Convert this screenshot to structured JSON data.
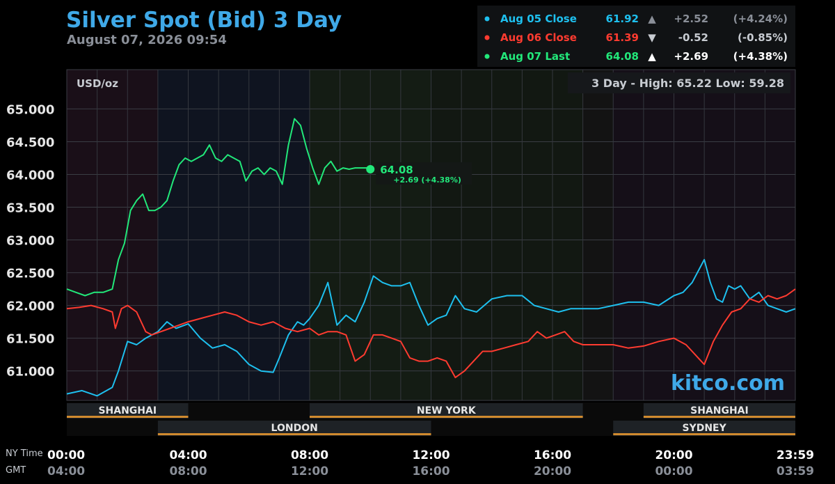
{
  "header": {
    "title": "Silver Spot (Bid) 3 Day",
    "subtitle": "August 07, 2026 09:54"
  },
  "legend": [
    {
      "label": "Aug 05 Close",
      "value": "61.92",
      "arrow": "▲",
      "change": "+2.52",
      "pct": "(+4.24%)",
      "color": "#1ec0ef",
      "arrow_color": "#8a8f98",
      "change_color": "#8a8f98"
    },
    {
      "label": "Aug 06 Close",
      "value": "61.39",
      "arrow": "▼",
      "change": "-0.52",
      "pct": "(-0.85%)",
      "color": "#ff3b30",
      "arrow_color": "#c8ccd2",
      "change_color": "#c8ccd2"
    },
    {
      "label": "Aug 07 Last",
      "value": "64.08",
      "arrow": "▲",
      "change": "+2.69",
      "pct": "(+4.38%)",
      "color": "#22e87a",
      "arrow_color": "#ffffff",
      "change_color": "#ffffff"
    }
  ],
  "chart": {
    "unit": "USD/oz",
    "range_text": "3 Day - High: 65.22  Low: 59.28",
    "watermark": "kitco.com",
    "last_value": "64.08",
    "last_change": "+2.69 (+4.38%)",
    "row_label_top": "NY Time",
    "row_label_bottom": "GMT"
  },
  "sessions": {
    "top": [
      {
        "name": "SHANGHAI",
        "start": 0,
        "end": 4
      },
      {
        "name": "NEW YORK",
        "start": 8,
        "end": 17
      },
      {
        "name": "SHANGHAI",
        "start": 19,
        "end": 24
      }
    ],
    "bottom": [
      {
        "name": "LONDON",
        "start": 3,
        "end": 12
      },
      {
        "name": "SYDNEY",
        "start": 18,
        "end": 24
      }
    ]
  },
  "chart_data": {
    "type": "line",
    "title": "Silver Spot (Bid) 3 Day",
    "ylabel": "USD/oz",
    "xlim": [
      0,
      24
    ],
    "ylim": [
      60.55,
      65.6
    ],
    "y_ticks": [
      "61.000",
      "61.500",
      "62.000",
      "62.500",
      "63.000",
      "63.500",
      "64.000",
      "64.500",
      "65.000"
    ],
    "x_ticks_ny": [
      "00:00",
      "04:00",
      "08:00",
      "12:00",
      "16:00",
      "20:00",
      "23:59"
    ],
    "x_ticks_gmt": [
      "04:00",
      "08:00",
      "12:00",
      "16:00",
      "20:00",
      "00:00",
      "03:59"
    ],
    "grid": true,
    "series": [
      {
        "name": "Aug 05 Close",
        "color": "#1ec0ef",
        "x": [
          0,
          0.5,
          1.0,
          1.5,
          1.7,
          2.0,
          2.3,
          2.6,
          3.0,
          3.3,
          3.6,
          4.0,
          4.4,
          4.8,
          5.2,
          5.6,
          6.0,
          6.4,
          6.8,
          7.0,
          7.3,
          7.6,
          7.8,
          8.0,
          8.3,
          8.6,
          8.9,
          9.2,
          9.5,
          9.8,
          10.1,
          10.4,
          10.7,
          11.0,
          11.3,
          11.6,
          11.9,
          12.2,
          12.5,
          12.8,
          13.1,
          13.5,
          14.0,
          14.5,
          15.0,
          15.4,
          15.8,
          16.2,
          16.6,
          17.0,
          17.5,
          18.0,
          18.5,
          19.0,
          19.5,
          20.0,
          20.3,
          20.6,
          21.0,
          21.2,
          21.4,
          21.6,
          21.8,
          22.0,
          22.2,
          22.5,
          22.8,
          23.1,
          23.4,
          23.7,
          24.0
        ],
        "y": [
          60.65,
          60.7,
          60.62,
          60.75,
          61.0,
          61.45,
          61.4,
          61.5,
          61.6,
          61.75,
          61.65,
          61.72,
          61.5,
          61.35,
          61.4,
          61.3,
          61.1,
          61.0,
          60.98,
          61.2,
          61.55,
          61.75,
          61.7,
          61.8,
          62.0,
          62.35,
          61.7,
          61.85,
          61.75,
          62.05,
          62.45,
          62.35,
          62.3,
          62.3,
          62.35,
          62.0,
          61.7,
          61.8,
          61.85,
          62.15,
          61.95,
          61.9,
          62.1,
          62.15,
          62.15,
          62.0,
          61.95,
          61.9,
          61.95,
          61.95,
          61.95,
          62.0,
          62.05,
          62.05,
          62.0,
          62.15,
          62.2,
          62.35,
          62.7,
          62.35,
          62.1,
          62.05,
          62.3,
          62.25,
          62.3,
          62.1,
          62.2,
          62.0,
          61.95,
          61.9,
          61.95
        ]
      },
      {
        "name": "Aug 06 Close",
        "color": "#ff3b30",
        "x": [
          0,
          0.4,
          0.8,
          1.2,
          1.5,
          1.6,
          1.8,
          2.0,
          2.3,
          2.6,
          2.8,
          3.1,
          3.4,
          3.7,
          4.0,
          4.4,
          4.8,
          5.2,
          5.6,
          6.0,
          6.4,
          6.8,
          7.2,
          7.6,
          8.0,
          8.3,
          8.6,
          8.9,
          9.2,
          9.5,
          9.8,
          10.1,
          10.4,
          10.7,
          11.0,
          11.3,
          11.6,
          11.9,
          12.2,
          12.5,
          12.8,
          13.1,
          13.4,
          13.7,
          14.0,
          14.4,
          14.8,
          15.2,
          15.5,
          15.8,
          16.1,
          16.4,
          16.7,
          17.0,
          17.5,
          18.0,
          18.5,
          19.0,
          19.5,
          20.0,
          20.4,
          20.8,
          21.0,
          21.3,
          21.6,
          21.9,
          22.2,
          22.5,
          22.8,
          23.1,
          23.4,
          23.7,
          24.0
        ],
        "y": [
          61.95,
          61.97,
          62.0,
          61.95,
          61.9,
          61.65,
          61.95,
          62.0,
          61.9,
          61.6,
          61.55,
          61.6,
          61.65,
          61.7,
          61.75,
          61.8,
          61.85,
          61.9,
          61.85,
          61.75,
          61.7,
          61.75,
          61.65,
          61.6,
          61.65,
          61.55,
          61.6,
          61.6,
          61.55,
          61.15,
          61.25,
          61.55,
          61.55,
          61.5,
          61.45,
          61.2,
          61.15,
          61.15,
          61.2,
          61.15,
          60.9,
          61.0,
          61.15,
          61.3,
          61.3,
          61.35,
          61.4,
          61.45,
          61.6,
          61.5,
          61.55,
          61.6,
          61.45,
          61.4,
          61.4,
          61.4,
          61.35,
          61.38,
          61.45,
          61.5,
          61.4,
          61.2,
          61.1,
          61.45,
          61.7,
          61.9,
          61.95,
          62.1,
          62.05,
          62.15,
          62.1,
          62.15,
          62.25
        ]
      },
      {
        "name": "Aug 07 Last",
        "color": "#22e87a",
        "x": [
          0,
          0.3,
          0.6,
          0.9,
          1.2,
          1.5,
          1.7,
          1.9,
          2.1,
          2.3,
          2.5,
          2.7,
          2.9,
          3.1,
          3.3,
          3.5,
          3.7,
          3.9,
          4.1,
          4.3,
          4.5,
          4.7,
          4.9,
          5.1,
          5.3,
          5.5,
          5.7,
          5.9,
          6.1,
          6.3,
          6.5,
          6.7,
          6.9,
          7.1,
          7.3,
          7.5,
          7.7,
          7.9,
          8.1,
          8.3,
          8.5,
          8.7,
          8.9,
          9.1,
          9.3,
          9.5,
          9.7,
          9.9,
          10.0
        ],
        "y": [
          62.25,
          62.2,
          62.15,
          62.2,
          62.2,
          62.25,
          62.7,
          62.95,
          63.45,
          63.6,
          63.7,
          63.45,
          63.45,
          63.5,
          63.6,
          63.9,
          64.15,
          64.25,
          64.2,
          64.25,
          64.3,
          64.45,
          64.25,
          64.2,
          64.3,
          64.25,
          64.2,
          63.9,
          64.05,
          64.1,
          64.0,
          64.1,
          64.05,
          63.85,
          64.45,
          64.85,
          64.75,
          64.4,
          64.1,
          63.85,
          64.1,
          64.2,
          64.05,
          64.1,
          64.08,
          64.1,
          64.1,
          64.1,
          64.08
        ]
      }
    ]
  }
}
